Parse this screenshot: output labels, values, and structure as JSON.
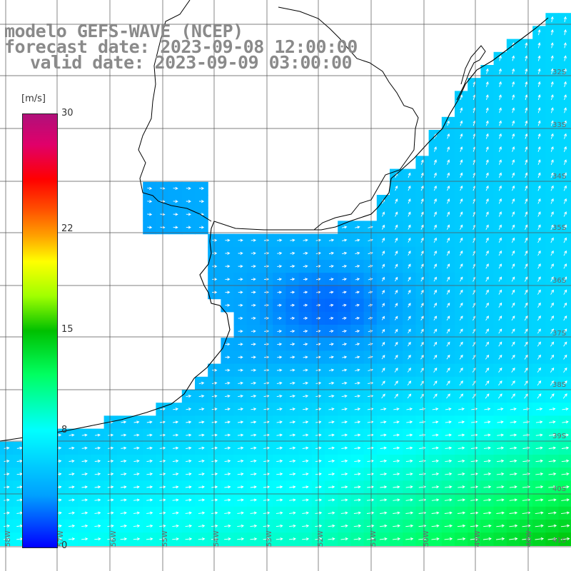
{
  "title": {
    "line1": "modelo GEFS-WAVE (NCEP)",
    "line2": "forecast date: 2023-09-08 12:00:00",
    "line3": "valid date: 2023-09-09 03:00:00"
  },
  "colorbar": {
    "unit": "[m/s]",
    "min": 0,
    "max": 30,
    "ticks": [
      {
        "value": 30,
        "label": "30"
      },
      {
        "value": 22,
        "label": "22"
      },
      {
        "value": 15,
        "label": "15"
      },
      {
        "value": 8,
        "label": "8"
      },
      {
        "value": 0,
        "label": "0"
      }
    ]
  },
  "grid": {
    "lat_labels": [
      "32S",
      "33S",
      "34S",
      "35S",
      "36S",
      "37S",
      "38S",
      "39S",
      "40S",
      "41S"
    ],
    "lon_labels": [
      "58W",
      "57W",
      "56W",
      "55W",
      "54W",
      "53W",
      "52W",
      "51W",
      "50W",
      "49W",
      "48W"
    ]
  },
  "colors": {
    "land": "#ffffff",
    "grid": "#555555",
    "coast": "#000000",
    "arrows": "#ffffff",
    "title": "#8a8a8a"
  }
}
